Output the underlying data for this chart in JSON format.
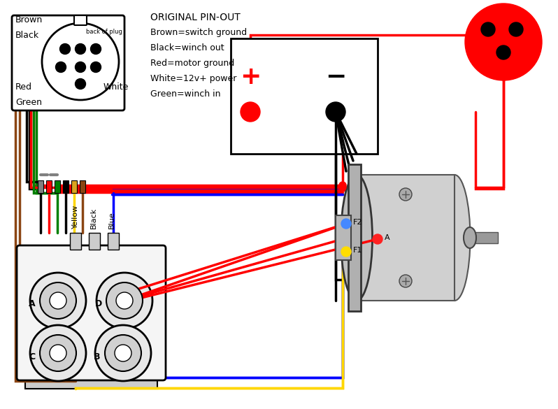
{
  "bg_color": "#ffffff",
  "pin_out_text": [
    "ORIGINAL PIN-OUT",
    "Brown=switch ground",
    "Black=winch out",
    "Red=motor ground",
    "White=12v+ power",
    "Green=winch in"
  ],
  "figsize": [
    7.98,
    5.85
  ],
  "dpi": 100
}
